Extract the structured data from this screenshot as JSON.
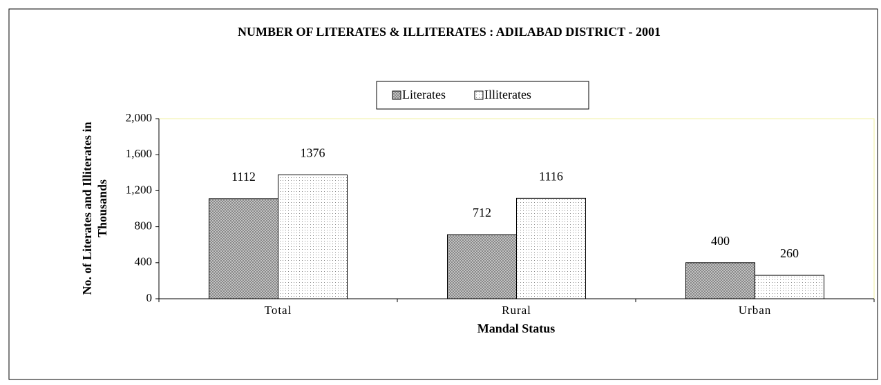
{
  "chart_data": {
    "type": "bar",
    "title": "NUMBER OF LITERATES & ILLITERATES : ADILABAD DISTRICT - 2001",
    "x_label": "Mandal Status",
    "y_label": [
      "No. of Literates and Illiterates in",
      "Thousands"
    ],
    "categories": [
      "Total",
      "Rural",
      "Urban"
    ],
    "series": [
      {
        "name": "Literates",
        "color": "#7a7a7a",
        "values": [
          1112,
          712,
          400
        ]
      },
      {
        "name": "Illiterates",
        "color": "#ffffff",
        "values": [
          1376,
          1116,
          260
        ]
      }
    ],
    "ylim": [
      0,
      2000
    ],
    "yticks": [
      0,
      {
        "value": 400,
        "label": "400"
      },
      {
        "value": 800,
        "label": "800"
      },
      {
        "value": 1200,
        "label": "1,200"
      },
      {
        "value": 1600,
        "label": "1,600"
      },
      {
        "value": 2000,
        "label": "2,000"
      }
    ],
    "legend": "top"
  }
}
